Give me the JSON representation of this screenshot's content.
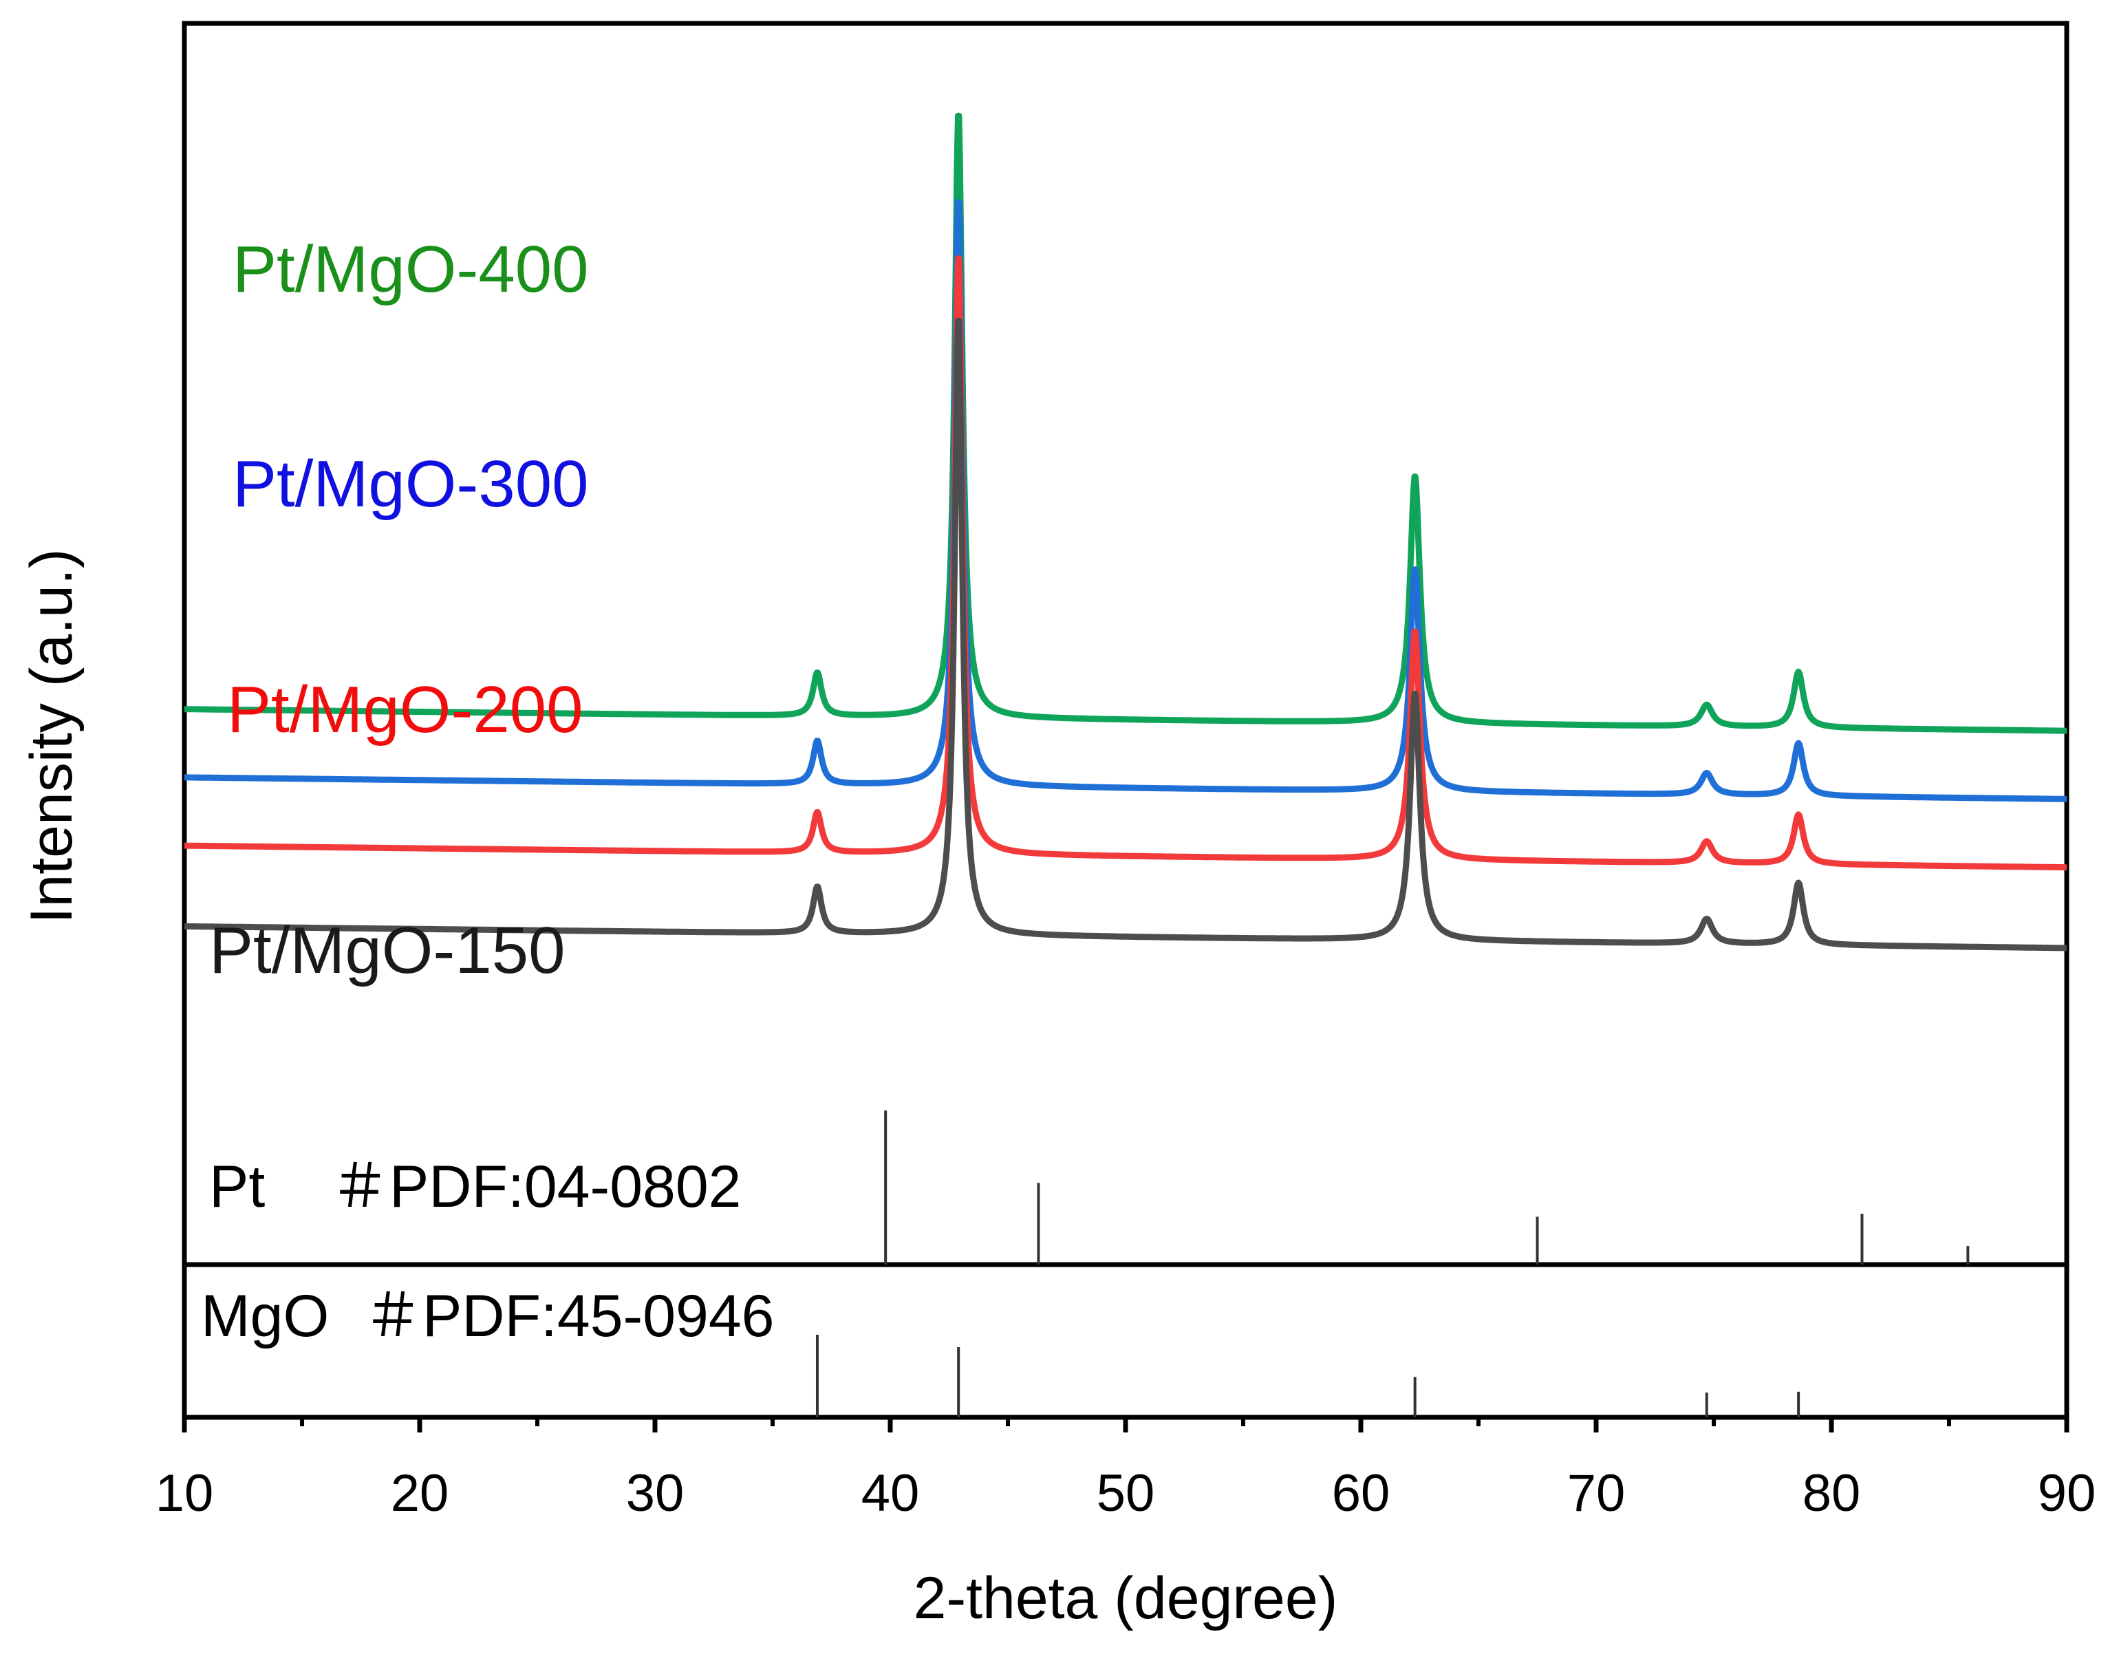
{
  "chart_data": {
    "type": "line",
    "title": "",
    "xlabel": "2-theta (degree)",
    "ylabel": "Intensity (a.u.)",
    "xlim": [
      10,
      90
    ],
    "x_ticks": [
      "10",
      "20",
      "30",
      "40",
      "50",
      "60",
      "70",
      "80",
      "90"
    ],
    "y_ticks_visible": false,
    "grid": false,
    "legend": "inline labels above each trace",
    "series": [
      {
        "name": "Pt/MgO-400",
        "color": "#10a35a",
        "label_color": "#1a8f1a",
        "baseline": 0.86,
        "baseline_drift": 0.035,
        "peaks": [
          {
            "two_theta": 36.9,
            "height": 0.07,
            "width": 0.22
          },
          {
            "two_theta": 42.9,
            "height": 0.98,
            "width": 0.2
          },
          {
            "two_theta": 62.3,
            "height": 0.4,
            "width": 0.25
          },
          {
            "two_theta": 74.7,
            "height": 0.035,
            "width": 0.3
          },
          {
            "two_theta": 78.6,
            "height": 0.09,
            "width": 0.25
          }
        ]
      },
      {
        "name": "Pt/MgO-300",
        "color": "#1f6fd6",
        "label_color": "#1010e0",
        "baseline": 0.75,
        "baseline_drift": 0.035,
        "peaks": [
          {
            "two_theta": 36.9,
            "height": 0.07,
            "width": 0.22
          },
          {
            "two_theta": 42.9,
            "height": 0.95,
            "width": 0.2
          },
          {
            "two_theta": 62.3,
            "height": 0.36,
            "width": 0.25
          },
          {
            "two_theta": 74.7,
            "height": 0.035,
            "width": 0.3
          },
          {
            "two_theta": 78.6,
            "height": 0.085,
            "width": 0.25
          }
        ]
      },
      {
        "name": "Pt/MgO-200",
        "color": "#f23a3a",
        "label_color": "#f20d0d",
        "baseline": 0.64,
        "baseline_drift": 0.035,
        "peaks": [
          {
            "two_theta": 36.9,
            "height": 0.065,
            "width": 0.22
          },
          {
            "two_theta": 42.9,
            "height": 0.97,
            "width": 0.2
          },
          {
            "two_theta": 62.3,
            "height": 0.37,
            "width": 0.25
          },
          {
            "two_theta": 74.7,
            "height": 0.035,
            "width": 0.3
          },
          {
            "two_theta": 78.6,
            "height": 0.08,
            "width": 0.25
          }
        ]
      },
      {
        "name": "Pt/MgO-150",
        "color": "#4d4d4d",
        "label_color": "#1a1a1a",
        "baseline": 0.51,
        "baseline_drift": 0.035,
        "peaks": [
          {
            "two_theta": 36.9,
            "height": 0.075,
            "width": 0.22
          },
          {
            "two_theta": 42.9,
            "height": 1.0,
            "width": 0.2
          },
          {
            "two_theta": 62.3,
            "height": 0.4,
            "width": 0.25
          },
          {
            "two_theta": 74.7,
            "height": 0.04,
            "width": 0.3
          },
          {
            "two_theta": 78.6,
            "height": 0.1,
            "width": 0.25
          }
        ]
      }
    ],
    "reference_patterns": [
      {
        "name": "Pt",
        "card": "＃PDF:04-0802",
        "lines": [
          {
            "two_theta": 39.8,
            "intensity": 100
          },
          {
            "two_theta": 46.3,
            "intensity": 53
          },
          {
            "two_theta": 67.5,
            "intensity": 31
          },
          {
            "two_theta": 81.3,
            "intensity": 33
          },
          {
            "two_theta": 85.8,
            "intensity": 12
          }
        ]
      },
      {
        "name": "MgO",
        "card": "＃PDF:45-0946",
        "lines": [
          {
            "two_theta": 36.9,
            "intensity": 100
          },
          {
            "two_theta": 42.9,
            "intensity": 85
          },
          {
            "two_theta": 62.3,
            "intensity": 49
          },
          {
            "two_theta": 74.7,
            "intensity": 30
          },
          {
            "two_theta": 78.6,
            "intensity": 31
          }
        ]
      }
    ]
  }
}
